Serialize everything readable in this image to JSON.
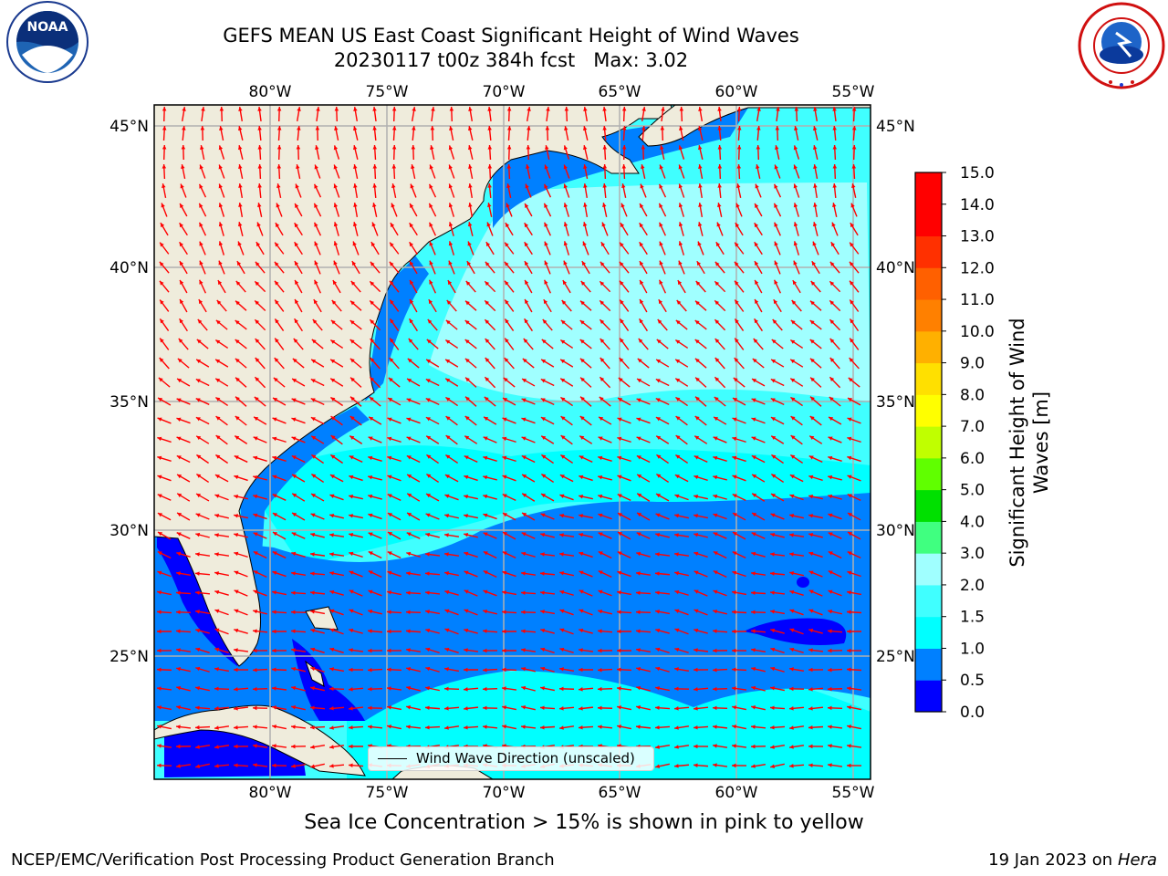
{
  "title": {
    "line1": "GEFS MEAN US East Coast Significant Height of Wind Waves",
    "line2": "20230117 t00z 384h fcst   Max: 3.02"
  },
  "map": {
    "lon_labels": [
      "80°W",
      "75°W",
      "70°W",
      "65°W",
      "60°W",
      "55°W"
    ],
    "lat_labels": [
      "45°N",
      "40°N",
      "35°N",
      "30°N",
      "25°N"
    ],
    "extent": {
      "lon_min": -85,
      "lon_max": -54.5,
      "lat_min": 20.5,
      "lat_max": 46
    },
    "legend": "Wind Wave Direction (unscaled)",
    "colors": {
      "land": "#efecdc",
      "arrow": "#ff0000",
      "grid": "#b0b0b0"
    }
  },
  "colorbar": {
    "label": "Significant Height of Wind Waves [m]",
    "ticks": [
      "0.0",
      "0.5",
      "1.0",
      "1.5",
      "2.0",
      "3.0",
      "4.0",
      "5.0",
      "6.0",
      "7.0",
      "8.0",
      "9.0",
      "10.0",
      "11.0",
      "12.0",
      "13.0",
      "14.0",
      "15.0"
    ],
    "colors": [
      "#0000ff",
      "#0080ff",
      "#00ffff",
      "#40ffff",
      "#a0ffff",
      "#40ff80",
      "#00e000",
      "#60ff00",
      "#c0ff00",
      "#ffff00",
      "#ffe000",
      "#ffb000",
      "#ff8000",
      "#ff6000",
      "#ff3000",
      "#ff0000",
      "#ff0000"
    ]
  },
  "logos": {
    "noaa": "NOAA",
    "nws": "NATIONAL WEATHER SERVICE"
  },
  "footer": {
    "note": "Sea Ice Concentration > 15% is shown in pink to yellow",
    "left": "NCEP/EMC/Verification Post Processing Product Generation Branch",
    "right_date": "19 Jan 2023 on",
    "right_machine": "Hera"
  }
}
